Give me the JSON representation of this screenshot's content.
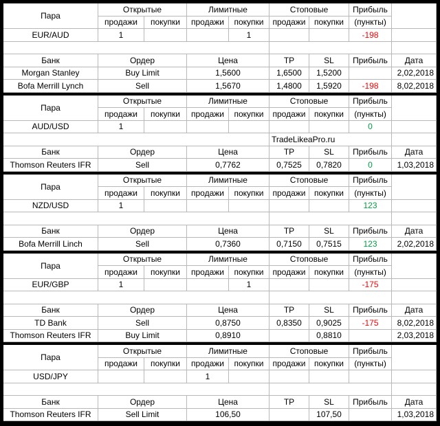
{
  "blocks": [
    {
      "header": {
        "pair": "Пара",
        "groups": [
          "Открытые",
          "Лимитные",
          "Стоповые"
        ],
        "profit": "Прибыль",
        "sub": [
          "продажи",
          "покупки",
          "продажи",
          "покупки",
          "продажи",
          "покупки"
        ],
        "points": "(пункты)"
      },
      "pair_row": {
        "pair": "EUR/AUD",
        "orders": [
          "1",
          null,
          null,
          "1",
          null,
          null
        ],
        "profit": "-198"
      },
      "bank_header": [
        "Банк",
        "Ордер",
        "Цена",
        "TP",
        "SL",
        "Прибыль",
        "Дата"
      ],
      "bank_rows": [
        [
          "Morgan Stanley",
          "Buy Limit",
          "1,5600",
          "1,6500",
          "1,5200",
          null,
          "2,02,2018"
        ],
        [
          "Bofa Merrill Lynch",
          "Sell",
          "1,5670",
          "1,4800",
          "1,5920",
          "-198",
          "8,02,2018"
        ]
      ]
    },
    {
      "header": {
        "pair": "Пара",
        "groups": [
          "Открытые",
          "Лимитные",
          "Стоповые"
        ],
        "profit": "Прибыль",
        "sub": [
          "продажи",
          "покупки",
          "продажи",
          "покупки",
          "продажи",
          "покупки"
        ],
        "points": "(пункты)"
      },
      "pair_row": {
        "pair": "AUD/USD",
        "orders": [
          "1",
          null,
          null,
          null,
          null,
          null
        ],
        "profit": "0"
      },
      "note": "TradeLikeaPro.ru",
      "bank_header": [
        "Банк",
        "Ордер",
        "Цена",
        "TP",
        "SL",
        "Прибыль",
        "Дата"
      ],
      "bank_rows": [
        [
          "Thomson Reuters IFR",
          "Sell",
          "0,7762",
          "0,7525",
          "0,7820",
          "0",
          "1,03,2018"
        ]
      ]
    },
    {
      "header": {
        "pair": "Пара",
        "groups": [
          "Открытые",
          "Лимитные",
          "Стоповые"
        ],
        "profit": "Прибыль",
        "sub": [
          "продажи",
          "покупки",
          "продажи",
          "покупки",
          "продажи",
          "покупки"
        ],
        "points": "(пункты)"
      },
      "pair_row": {
        "pair": "NZD/USD",
        "orders": [
          "1",
          null,
          null,
          null,
          null,
          null
        ],
        "profit": "123"
      },
      "bank_header": [
        "Банк",
        "Ордер",
        "Цена",
        "TP",
        "SL",
        "Прибыль",
        "Дата"
      ],
      "bank_rows": [
        [
          "Bofa Merrill Linch",
          "Sell",
          "0,7360",
          "0,7150",
          "0,7515",
          "123",
          "2,02,2018"
        ]
      ]
    },
    {
      "header": {
        "pair": "Пара",
        "groups": [
          "Открытые",
          "Лимитные",
          "Стоповые"
        ],
        "profit": "Прибыль",
        "sub": [
          "продажи",
          "покупки",
          "продажи",
          "покупки",
          "продажи",
          "покупки"
        ],
        "points": "(пункты)"
      },
      "pair_row": {
        "pair": "EUR/GBP",
        "orders": [
          "1",
          null,
          null,
          "1",
          null,
          null
        ],
        "profit": "-175"
      },
      "bank_header": [
        "Банк",
        "Ордер",
        "Цена",
        "TP",
        "SL",
        "Прибыль",
        "Дата"
      ],
      "bank_rows": [
        [
          "TD Bank",
          "Sell",
          "0,8750",
          "0,8350",
          "0,9025",
          "-175",
          "8,02,2018"
        ],
        [
          "Thomson Reuters IFR",
          "Buy Limit",
          "0,8910",
          null,
          "0,8810",
          null,
          "2,03,2018"
        ]
      ]
    },
    {
      "header": {
        "pair": "Пара",
        "groups": [
          "Открытые",
          "Лимитные",
          "Стоповые"
        ],
        "profit": "Прибыль",
        "sub": [
          "продажи",
          "покупки",
          "продажи",
          "покупки",
          "продажи",
          "покупки"
        ],
        "points": "(пункты)"
      },
      "pair_row": {
        "pair": "USD/JPY",
        "orders": [
          null,
          null,
          "1",
          null,
          null,
          null
        ],
        "profit": null
      },
      "bank_header": [
        "Банк",
        "Ордер",
        "Цена",
        "TP",
        "SL",
        "Прибыль",
        "Дата"
      ],
      "bank_rows": [
        [
          "Thomson Reuters IFR",
          "Sell Limit",
          "106,50",
          null,
          "107,50",
          null,
          "1,03,2018"
        ]
      ]
    }
  ]
}
